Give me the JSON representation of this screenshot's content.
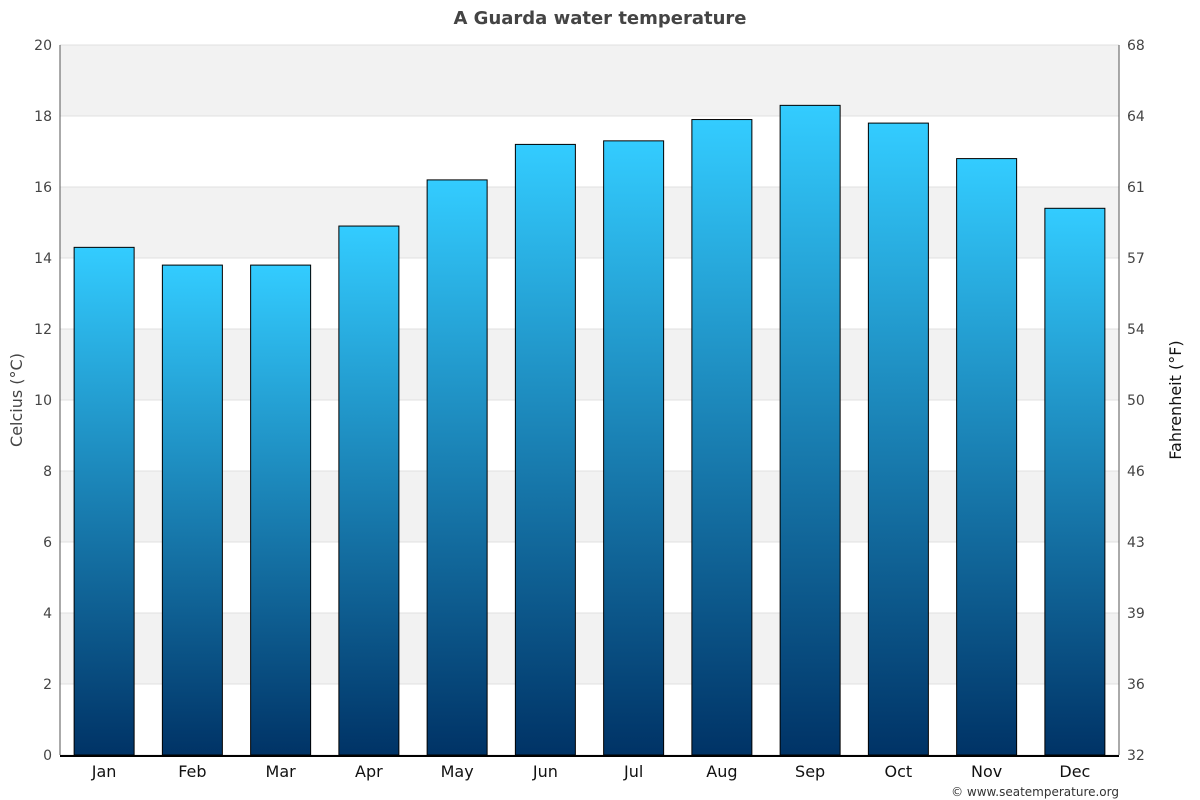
{
  "chart_data": {
    "type": "bar",
    "title": "A Guarda water temperature",
    "ylabel": "Celcius (°C)",
    "y2label": "Fahrenheit (°F)",
    "xlabel": "",
    "categories": [
      "Jan",
      "Feb",
      "Mar",
      "Apr",
      "May",
      "Jun",
      "Jul",
      "Aug",
      "Sep",
      "Oct",
      "Nov",
      "Dec"
    ],
    "values": [
      14.3,
      13.8,
      13.8,
      14.9,
      16.2,
      17.2,
      17.3,
      17.9,
      18.3,
      17.8,
      16.8,
      15.4
    ],
    "ylim": [
      0,
      20
    ],
    "yticks": [
      0,
      2,
      4,
      6,
      8,
      10,
      12,
      14,
      16,
      18,
      20
    ],
    "y2ticks": [
      "32",
      "36",
      "39",
      "43",
      "46",
      "50",
      "54",
      "57",
      "61",
      "64",
      "68"
    ],
    "grid": true,
    "legend": "none",
    "colors": {
      "bar_top": "#33ccff",
      "bar_bottom": "#003366",
      "band": "#f2f2f2",
      "title": "#444444"
    }
  },
  "credit": "© www.seatemperature.org"
}
